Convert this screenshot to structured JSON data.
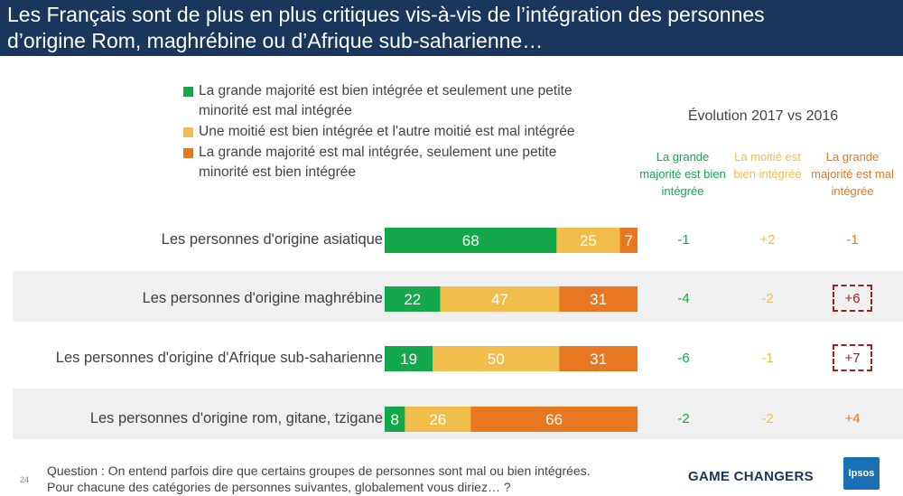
{
  "title": {
    "line1": "Les Français sont de plus en plus critiques vis-à-vis de l’intégration des personnes",
    "line2": "d’origine Rom, maghrébine ou d’Afrique sub-saharienne…"
  },
  "legend": [
    {
      "label": "La grande majorité est bien intégrée et seulement une petite minorité est mal intégrée",
      "color": "#13a84a"
    },
    {
      "label": "Une moitié est bien intégrée et l'autre moitié est mal intégrée",
      "color": "#f1bd4b"
    },
    {
      "label": "La grande majorité est mal intégrée, seulement une petite minorité est bien intégrée",
      "color": "#e87722"
    }
  ],
  "evolution": {
    "title": "Évolution 2017 vs 2016",
    "headers": [
      {
        "text": "La grande majorité est bien intégrée",
        "color": "#13a84a"
      },
      {
        "text": "La moitié est bien intégrée",
        "color": "#f1bd4b"
      },
      {
        "text": "La grande majorité est mal intégrée",
        "color": "#e87722"
      }
    ],
    "rows": [
      [
        "-1",
        "+2",
        "-1"
      ],
      [
        "-4",
        "-2",
        "+6"
      ],
      [
        "-6",
        "-1",
        "+7"
      ],
      [
        "-2",
        "-2",
        "+4"
      ]
    ],
    "highlighted": [
      [
        1,
        2
      ],
      [
        2,
        2
      ]
    ]
  },
  "chart_data": {
    "type": "bar",
    "stacked": true,
    "orientation": "horizontal",
    "categories": [
      "Les personnes d'origine asiatique",
      "Les personnes d'origine maghrébine",
      "Les personnes d'origine d'Afrique sub-saharienne",
      "Les personnes d'origine rom, gitane, tzigane"
    ],
    "series": [
      {
        "name": "La grande majorité est bien intégrée et seulement une petite minorité est mal intégrée",
        "values": [
          68,
          22,
          19,
          8
        ],
        "color": "#13a84a"
      },
      {
        "name": "Une moitié est bien intégrée et l'autre moitié est mal intégrée",
        "values": [
          25,
          47,
          50,
          26
        ],
        "color": "#f1bd4b"
      },
      {
        "name": "La grande majorité est mal intégrée, seulement une petite minorité est bien intégrée",
        "values": [
          7,
          31,
          31,
          66
        ],
        "color": "#e87722"
      }
    ],
    "xlim": [
      0,
      100
    ]
  },
  "footer": {
    "page": "24",
    "question_line1": "Question : On entend parfois dire que certains groupes de personnes sont mal ou bien intégrées.",
    "question_line2": "Pour chacune des catégories de personnes suivantes, globalement vous diriez… ?",
    "brand": "GAME CHANGERS",
    "logo": "Ipsos"
  }
}
